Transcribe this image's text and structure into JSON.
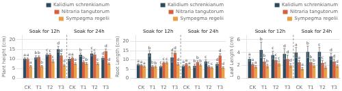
{
  "chart_data": [
    {
      "type": "bar",
      "y_label": "Plant height (cm)",
      "categories": [
        "CK",
        "T1",
        "T2",
        "T3",
        "CK",
        "T1",
        "T2",
        "T3"
      ],
      "annotations": [
        "Soak for 12h",
        "Soak for 24h"
      ],
      "series": [
        {
          "name": "Kalidium schrenkianum",
          "color": "#2d4a5e",
          "values": [
            10.2,
            10.8,
            12.3,
            15.0,
            10.0,
            12.2,
            12.8,
            10.6
          ],
          "errors": [
            0.5,
            0.8,
            0.7,
            1.5,
            0.9,
            0.9,
            1.2,
            0.8
          ],
          "annotations": [
            "a",
            "b",
            "c",
            "d",
            "a",
            "b",
            "c",
            "d"
          ]
        },
        {
          "name": "Nitraria tangutorum",
          "color": "#d95f3b",
          "values": [
            10.0,
            11.0,
            12.2,
            11.8,
            10.5,
            8.5,
            12.3,
            14.0
          ],
          "errors": [
            0.5,
            0.6,
            0.6,
            0.9,
            0.6,
            0.6,
            0.9,
            1.1
          ],
          "annotations": [
            "a",
            "b",
            "c",
            "d",
            "a",
            "b",
            "c",
            "d"
          ]
        },
        {
          "name": "Sympegma regelii",
          "color": "#e8a045",
          "values": [
            6.3,
            6.3,
            8.8,
            6.8,
            7.6,
            7.6,
            7.6,
            7.6
          ],
          "errors": [
            0.4,
            0.4,
            0.7,
            0.5,
            0.5,
            0.5,
            0.5,
            0.4
          ],
          "annotations": [
            "a",
            "b",
            "c",
            "d",
            "a",
            "b",
            "c",
            "d"
          ]
        }
      ],
      "ylim": [
        0,
        22.4
      ],
      "yticks": [
        0,
        5,
        10,
        15,
        20
      ],
      "grid": true,
      "legend": "upper right"
    },
    {
      "type": "bar",
      "y_label": "Root Length (cm)",
      "categories": [
        "CK",
        "T1",
        "T2",
        "T3",
        "CK",
        "T1",
        "T2",
        "T3"
      ],
      "annotations": [
        "Soak for 12h",
        "Soak for 24h"
      ],
      "series": [
        {
          "name": "Kalidium schrenkianum",
          "color": "#2d4a5e",
          "values": [
            7.5,
            13.5,
            6.5,
            11.3,
            6.8,
            6.8,
            9.2,
            7.8
          ],
          "errors": [
            0.5,
            1.5,
            0.7,
            2.5,
            0.5,
            0.9,
            0.9,
            0.7
          ],
          "annotations": [
            "a",
            "b",
            "c",
            "d",
            "a",
            "b",
            "c",
            "d"
          ]
        },
        {
          "name": "Nitraria tangutorum",
          "color": "#d95f3b",
          "values": [
            7.2,
            6.5,
            8.5,
            13.8,
            7.8,
            8.8,
            6.5,
            12.3
          ],
          "errors": [
            0.4,
            0.6,
            0.5,
            1.0,
            0.4,
            0.7,
            0.6,
            1.0
          ],
          "annotations": [
            "a",
            "b",
            "c",
            "d",
            "a",
            "b",
            "c",
            "d"
          ]
        },
        {
          "name": "Sympegma regelii",
          "color": "#e8a045",
          "values": [
            6.5,
            6.3,
            8.5,
            7.8,
            6.3,
            7.2,
            5.8,
            5.9
          ],
          "errors": [
            0.4,
            0.5,
            0.5,
            0.7,
            0.4,
            0.5,
            0.4,
            0.4
          ],
          "annotations": [
            "a",
            "b",
            "c",
            "d",
            "a",
            "b",
            "c",
            "d"
          ]
        }
      ],
      "ylim": [
        0,
        23.52
      ],
      "yticks": [
        0,
        5,
        10,
        15,
        20
      ],
      "grid": true,
      "legend": "upper right"
    },
    {
      "type": "bar",
      "y_label": "Leaf Length (cm)",
      "categories": [
        "CK",
        "T1",
        "T2",
        "T3",
        "CK",
        "T1",
        "T2",
        "T3"
      ],
      "annotations": [
        "Soak for 12h",
        "Soak for 24h"
      ],
      "series": [
        {
          "name": "Kalidium schrenkianum",
          "color": "#2d4a5e",
          "values": [
            3.0,
            4.4,
            3.6,
            3.8,
            4.0,
            4.1,
            4.1,
            3.4
          ],
          "errors": [
            0.3,
            1.2,
            0.6,
            0.8,
            0.8,
            0.9,
            0.7,
            0.5
          ],
          "annotations": [
            "a",
            "b",
            "c",
            "d",
            "a",
            "b",
            "c",
            "d"
          ]
        },
        {
          "name": "Nitraria tangutorum",
          "color": "#d95f3b",
          "values": [
            2.2,
            2.6,
            2.8,
            3.0,
            2.5,
            2.5,
            2.4,
            2.6
          ],
          "errors": [
            0.2,
            0.5,
            0.4,
            0.6,
            0.3,
            0.4,
            0.4,
            0.4
          ],
          "annotations": [
            "a",
            "b",
            "c",
            "d",
            "a",
            "b",
            "c",
            "d"
          ]
        },
        {
          "name": "Sympegma regelii",
          "color": "#e8a045",
          "values": [
            1.8,
            1.9,
            2.3,
            2.0,
            1.5,
            2.0,
            1.7,
            1.9
          ],
          "errors": [
            0.2,
            0.3,
            0.4,
            0.3,
            0.2,
            0.3,
            0.2,
            0.2
          ],
          "annotations": [
            "a",
            "b",
            "c",
            "d",
            "a",
            "b",
            "c",
            "d"
          ]
        }
      ],
      "ylim": [
        0,
        6.72
      ],
      "yticks": [
        0,
        2,
        4,
        6
      ],
      "grid": true,
      "legend": "upper right"
    }
  ]
}
